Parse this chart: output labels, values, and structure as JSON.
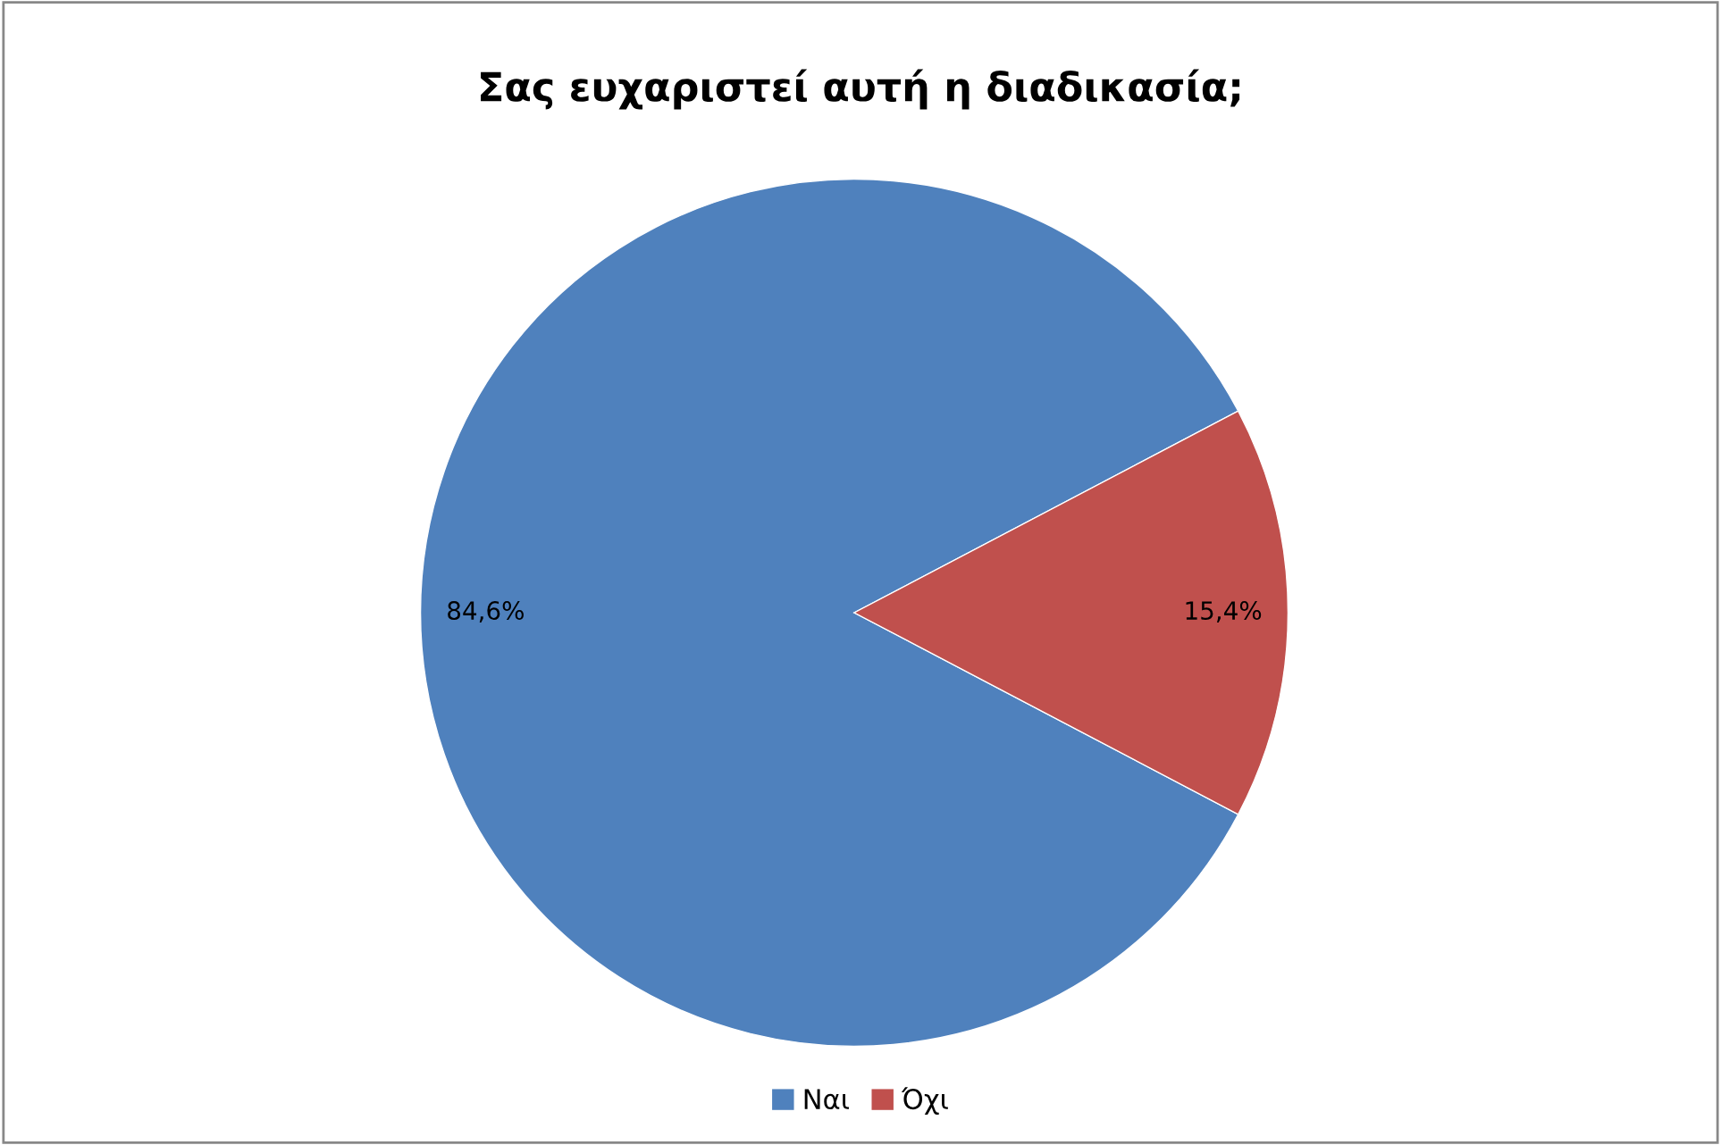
{
  "chart_data": {
    "type": "pie",
    "title": "Σας ευχαριστεί αυτή η διαδικασία;",
    "categories": [
      "Ναι",
      "Όχι"
    ],
    "values": [
      84.6,
      15.4
    ],
    "colors": [
      "#4f81bd",
      "#c0504d"
    ],
    "value_labels": [
      "84,6%",
      "15,4%"
    ],
    "legend": "bottom"
  }
}
